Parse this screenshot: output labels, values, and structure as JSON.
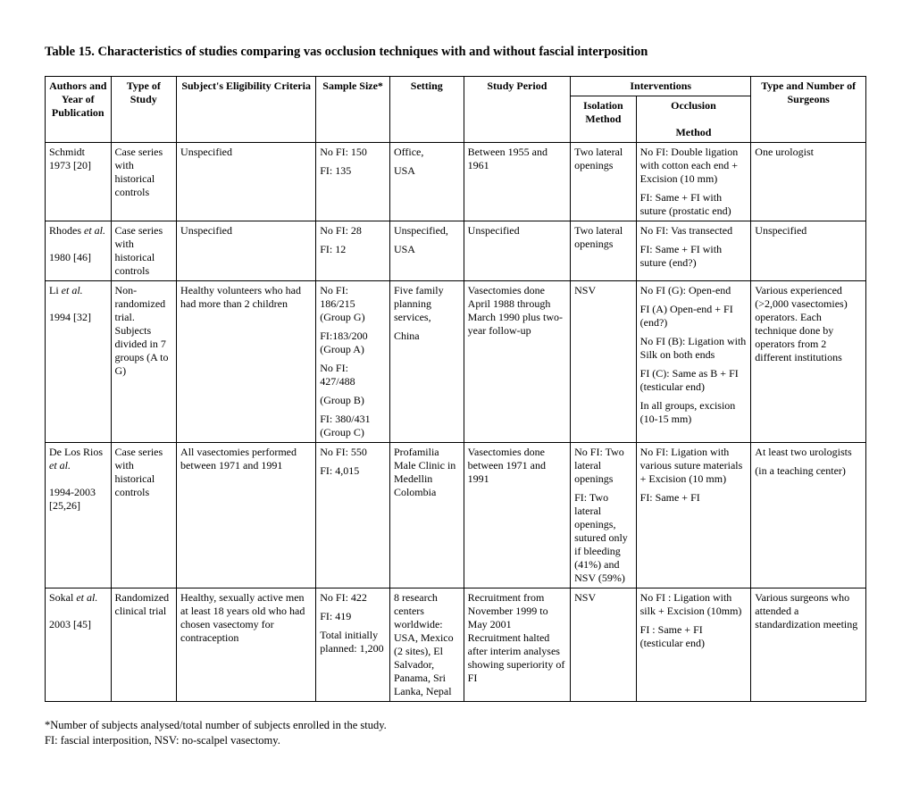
{
  "title": "Table 15. Characteristics of studies comparing vas occlusion techniques with and without fascial interposition",
  "headers": {
    "authors": "Authors and Year of Publication",
    "type": "Type of Study",
    "eligibility": "Subject's Eligibility Criteria",
    "sample": "Sample Size*",
    "setting": "Setting",
    "period": "Study Period",
    "interventions": "Interventions",
    "isolation": "Isolation Method",
    "occlusion": "Occlusion",
    "method": "Method",
    "surgeons": "Type and Number of Surgeons"
  },
  "rows": [
    {
      "authors": "Schmidt 1973 [20]",
      "type": "Case series with historical controls",
      "elig": "Unspecified",
      "sample": [
        "No FI: 150",
        "FI: 135"
      ],
      "setting": [
        "Office,",
        "USA"
      ],
      "period": "Between 1955 and 1961",
      "isolation": "Two lateral openings",
      "occlusion": [
        "No FI:  Double ligation with cotton each end + Excision (10 mm)",
        "FI: Same + FI with suture (prostatic end)"
      ],
      "surgeons": "One urologist"
    },
    {
      "authors_html": "Rhodes <em>et al.</em><br><br>1980 [46]",
      "type": "Case series with historical controls",
      "elig": "Unspecified",
      "sample": [
        "No FI: 28",
        "FI: 12"
      ],
      "setting": [
        "Unspecified,",
        "USA"
      ],
      "period": "Unspecified",
      "isolation": "Two lateral openings",
      "occlusion": [
        "No FI: Vas transected",
        "FI: Same + FI with suture (end?)"
      ],
      "surgeons": "Unspecified"
    },
    {
      "authors_html": "Li <em>et al.</em><br><br>1994 [32]",
      "type": "Non-randomized trial. Subjects divided in 7 groups (A to G)",
      "elig": "Healthy volunteers who had had more than 2 children",
      "sample": [
        "No FI: 186/215 (Group G)",
        "FI:183/200 (Group A)",
        "No FI: 427/488",
        "(Group B)",
        "FI: 380/431 (Group C)"
      ],
      "setting": [
        "Five family planning services,",
        "China"
      ],
      "period": "Vasectomies done April 1988 through March 1990 plus two-year follow-up",
      "isolation": "NSV",
      "occlusion": [
        "No FI (G): Open-end",
        "FI (A) Open-end + FI (end?)",
        "No FI (B): Ligation with Silk on both ends",
        "FI (C): Same as B + FI (testicular end)",
        "In all groups, excision (10-15 mm)"
      ],
      "surgeons": "Various experienced (>2,000 vasectomies) operators. Each technique done by operators from 2 different institutions"
    },
    {
      "authors_html": "De Los Rios <em>et al.</em><br><br>1994-2003<br>[25,26]",
      "type": "Case series with historical controls",
      "elig": "All vasectomies performed between 1971 and 1991",
      "sample": [
        "No FI: 550",
        "FI: 4,015"
      ],
      "setting": "Profamilia Male Clinic in Medellin Colombia",
      "period": "Vasectomies done between 1971 and 1991",
      "isolation": [
        "No FI: Two lateral openings",
        "FI: Two lateral openings, sutured only if bleeding (41%) and NSV (59%)"
      ],
      "occlusion": [
        "No FI:  Ligation with various suture materials + Excision (10 mm)",
        "FI: Same + FI"
      ],
      "surgeons": [
        "At least two urologists",
        "(in a teaching center)"
      ]
    },
    {
      "authors_html": "Sokal <em>et al.</em><br><br>2003 [45]",
      "type": "Randomized clinical trial",
      "elig": "Healthy, sexually active men at least 18 years old who had chosen vasectomy for contraception",
      "sample": [
        "No FI: 422",
        "FI: 419",
        "Total initially planned: 1,200"
      ],
      "setting": "8 research centers worldwide: USA, Mexico (2 sites), El Salvador, Panama, Sri Lanka, Nepal",
      "period": "Recruitment from November 1999 to May 2001 Recruitment halted after interim analyses showing superiority of FI",
      "isolation": "NSV",
      "occlusion": [
        "No FI : Ligation with silk + Excision (10mm)",
        "FI : Same + FI (testicular end)"
      ],
      "surgeons": "Various surgeons who attended a standardization meeting"
    }
  ],
  "footnote": [
    "*Number of subjects analysed/total number of subjects enrolled in the study.",
    "FI: fascial interposition, NSV: no-scalpel vasectomy."
  ]
}
